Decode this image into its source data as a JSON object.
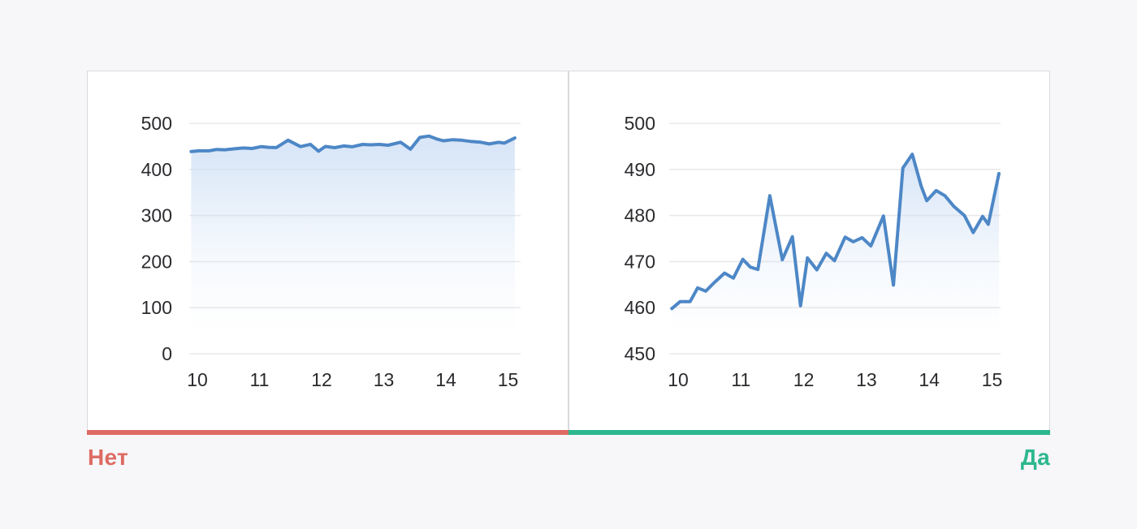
{
  "page": {
    "background_color": "#f7f6f9",
    "card_background": "#ffffff",
    "card_border_color": "#d9d8dd",
    "grid_color": "#e9e9ec",
    "tick_text_color": "#2b2b2f"
  },
  "answer_bar": {
    "no": {
      "label": "Нет",
      "color": "#dd6b63"
    },
    "yes": {
      "label": "Да",
      "color": "#2eb78e"
    }
  },
  "chart_data": [
    {
      "type": "area",
      "panel": "left",
      "answer": "Нет",
      "title": "",
      "xlabel": "",
      "ylabel": "",
      "grid": true,
      "legend": "none",
      "line_color": "#4d87c6",
      "fill_color": "#c9dcf4",
      "x_ticks": [
        10,
        11,
        12,
        13,
        14,
        15
      ],
      "y_ticks": [
        0,
        100,
        200,
        300,
        400,
        500
      ],
      "xlim": [
        9.87,
        15.19
      ],
      "ylim": [
        0,
        500
      ],
      "x": [
        9.9,
        10.03,
        10.19,
        10.31,
        10.44,
        10.58,
        10.74,
        10.88,
        11.03,
        11.15,
        11.27,
        11.46,
        11.66,
        11.82,
        11.95,
        12.06,
        12.21,
        12.36,
        12.49,
        12.66,
        12.79,
        12.93,
        13.07,
        13.27,
        13.43,
        13.58,
        13.73,
        13.87,
        13.96,
        14.11,
        14.25,
        14.39,
        14.56,
        14.7,
        14.85,
        14.94,
        15.11
      ],
      "y": [
        438.8,
        440.3,
        440.3,
        443.3,
        442.6,
        444.5,
        446.5,
        445.4,
        449.5,
        447.8,
        447.3,
        463.3,
        449.4,
        454.4,
        439.4,
        449.8,
        447.2,
        450.8,
        449.2,
        454.3,
        453.3,
        454.2,
        452.4,
        458.9,
        443.9,
        469.3,
        472.3,
        465.4,
        462.2,
        464.4,
        463.3,
        461.0,
        459.0,
        455.3,
        458.8,
        457.1,
        468.1
      ]
    },
    {
      "type": "area",
      "panel": "right",
      "answer": "Да",
      "title": "",
      "xlabel": "",
      "ylabel": "",
      "grid": true,
      "legend": "none",
      "line_color": "#4d87c6",
      "fill_color": "#c9dcf4",
      "x_ticks": [
        10,
        11,
        12,
        13,
        14,
        15
      ],
      "y_ticks": [
        450,
        460,
        470,
        480,
        490,
        500
      ],
      "xlim": [
        9.87,
        15.14
      ],
      "ylim": [
        450,
        500
      ],
      "x": [
        9.9,
        10.03,
        10.19,
        10.31,
        10.44,
        10.58,
        10.74,
        10.88,
        11.03,
        11.15,
        11.27,
        11.46,
        11.66,
        11.82,
        11.95,
        12.06,
        12.21,
        12.36,
        12.49,
        12.66,
        12.79,
        12.93,
        13.07,
        13.27,
        13.43,
        13.58,
        13.73,
        13.87,
        13.96,
        14.11,
        14.25,
        14.39,
        14.56,
        14.7,
        14.85,
        14.94,
        15.11
      ],
      "y": [
        459.8,
        461.3,
        461.3,
        464.3,
        463.6,
        465.5,
        467.5,
        466.4,
        470.5,
        468.8,
        468.3,
        484.3,
        470.4,
        475.4,
        460.4,
        470.8,
        468.2,
        471.8,
        470.2,
        475.3,
        474.3,
        475.2,
        473.4,
        479.9,
        464.9,
        490.3,
        493.3,
        486.4,
        483.2,
        485.4,
        484.3,
        482.0,
        480.0,
        476.3,
        479.8,
        478.1,
        489.1
      ]
    }
  ]
}
